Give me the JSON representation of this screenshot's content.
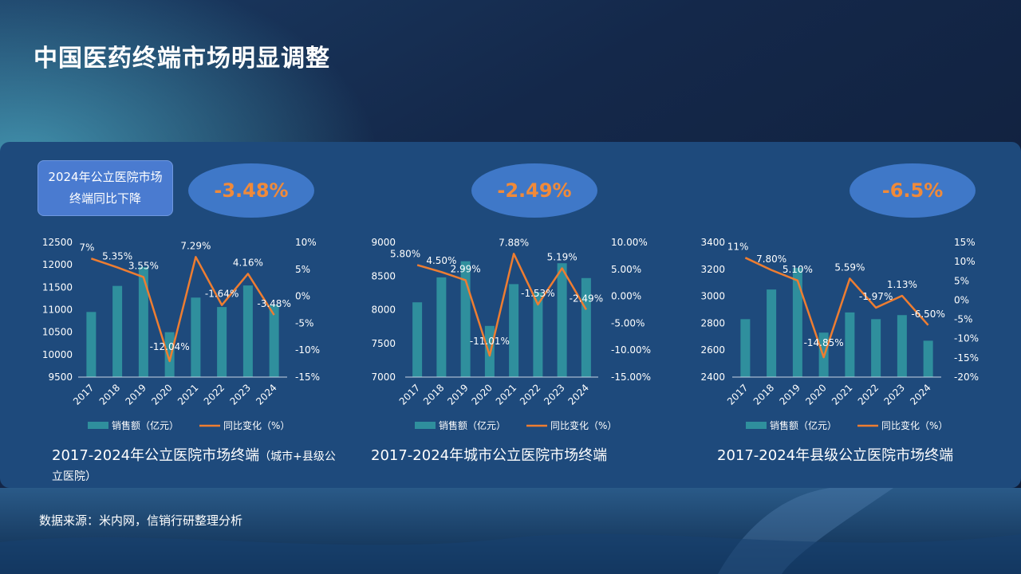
{
  "title": "中国医药终端市场明显调整",
  "callout": "2024年公立医院市场终端同比下降",
  "source": "数据来源：米内网，信销行研整理分析",
  "colors": {
    "bar": "#2f8f9d",
    "line": "#ee7d31",
    "badge_bg": "#3f78c8",
    "badge_text": "#f08a3a",
    "panel": "#1e4a7c"
  },
  "chart_data": [
    {
      "type": "bar",
      "badge": "-3.48%",
      "title_main": "2017-2024年公立医院市场终端",
      "title_note": "（城市+县级公立医院）",
      "categories": [
        "2017",
        "2018",
        "2019",
        "2020",
        "2021",
        "2022",
        "2023",
        "2024"
      ],
      "series": [
        {
          "name": "销售额（亿元）",
          "type": "bar",
          "axis": "left",
          "values": [
            10950,
            11530,
            11950,
            10500,
            11270,
            11060,
            11540,
            11110
          ]
        },
        {
          "name": "同比变化（%）",
          "type": "line",
          "axis": "right",
          "values": [
            7,
            5.35,
            3.55,
            -12.04,
            7.29,
            -1.64,
            4.16,
            -3.48
          ],
          "labels": [
            "7%",
            "5.35%",
            "3.55%",
            "-12.04%",
            "7.29%",
            "-1.64%",
            "4.16%",
            "-3.48%"
          ]
        }
      ],
      "y_left": {
        "min": 9500,
        "max": 12500,
        "ticks": [
          "9500",
          "10000",
          "10500",
          "11000",
          "11500",
          "12000",
          "12500"
        ]
      },
      "y_right": {
        "min": -15,
        "max": 10,
        "ticks": [
          "-15%",
          "-10%",
          "-5%",
          "0%",
          "5%",
          "10%"
        ]
      }
    },
    {
      "type": "bar",
      "badge": "-2.49%",
      "title_main": "2017-2024年城市公立医院市场终端",
      "title_note": "",
      "categories": [
        "2017",
        "2018",
        "2019",
        "2020",
        "2021",
        "2022",
        "2023",
        "2024"
      ],
      "series": [
        {
          "name": "销售额（亿元）",
          "type": "bar",
          "axis": "left",
          "values": [
            8110,
            8480,
            8720,
            7760,
            8380,
            8260,
            8690,
            8470
          ]
        },
        {
          "name": "同比变化（%）",
          "type": "line",
          "axis": "right",
          "values": [
            5.8,
            4.5,
            2.99,
            -11.01,
            7.88,
            -1.53,
            5.19,
            -2.49
          ],
          "labels": [
            "5.80%",
            "4.50%",
            "2.99%",
            "-11.01%",
            "7.88%",
            "-1.53%",
            "5.19%",
            "-2.49%"
          ]
        }
      ],
      "y_left": {
        "min": 7000,
        "max": 9000,
        "ticks": [
          "7000",
          "7500",
          "8000",
          "8500",
          "9000"
        ]
      },
      "y_right": {
        "min": -15,
        "max": 10,
        "ticks": [
          "-15.00%",
          "-10.00%",
          "-5.00%",
          "0.00%",
          "5.00%",
          "10.00%"
        ]
      }
    },
    {
      "type": "bar",
      "badge": "-6.5%",
      "title_main": "2017-2024年县级公立医院市场终端",
      "title_note": "",
      "categories": [
        "2017",
        "2018",
        "2019",
        "2020",
        "2021",
        "2022",
        "2023",
        "2024"
      ],
      "series": [
        {
          "name": "销售额（亿元）",
          "type": "bar",
          "axis": "left",
          "values": [
            2830,
            3050,
            3210,
            2730,
            2880,
            2830,
            2860,
            2670
          ]
        },
        {
          "name": "同比变化（%）",
          "type": "line",
          "axis": "right",
          "values": [
            11,
            7.8,
            5.1,
            -14.85,
            5.59,
            -1.97,
            1.13,
            -6.5
          ],
          "labels": [
            "11%",
            "7.80%",
            "5.10%",
            "-14.85%",
            "5.59%",
            "-1.97%",
            "1.13%",
            "-6.50%"
          ]
        }
      ],
      "y_left": {
        "min": 2400,
        "max": 3400,
        "ticks": [
          "2400",
          "2600",
          "2800",
          "3000",
          "3200",
          "3400"
        ]
      },
      "y_right": {
        "min": -20,
        "max": 15,
        "ticks": [
          "-20%",
          "-15%",
          "-10%",
          "-5%",
          "0%",
          "5%",
          "10%",
          "15%"
        ]
      }
    }
  ]
}
